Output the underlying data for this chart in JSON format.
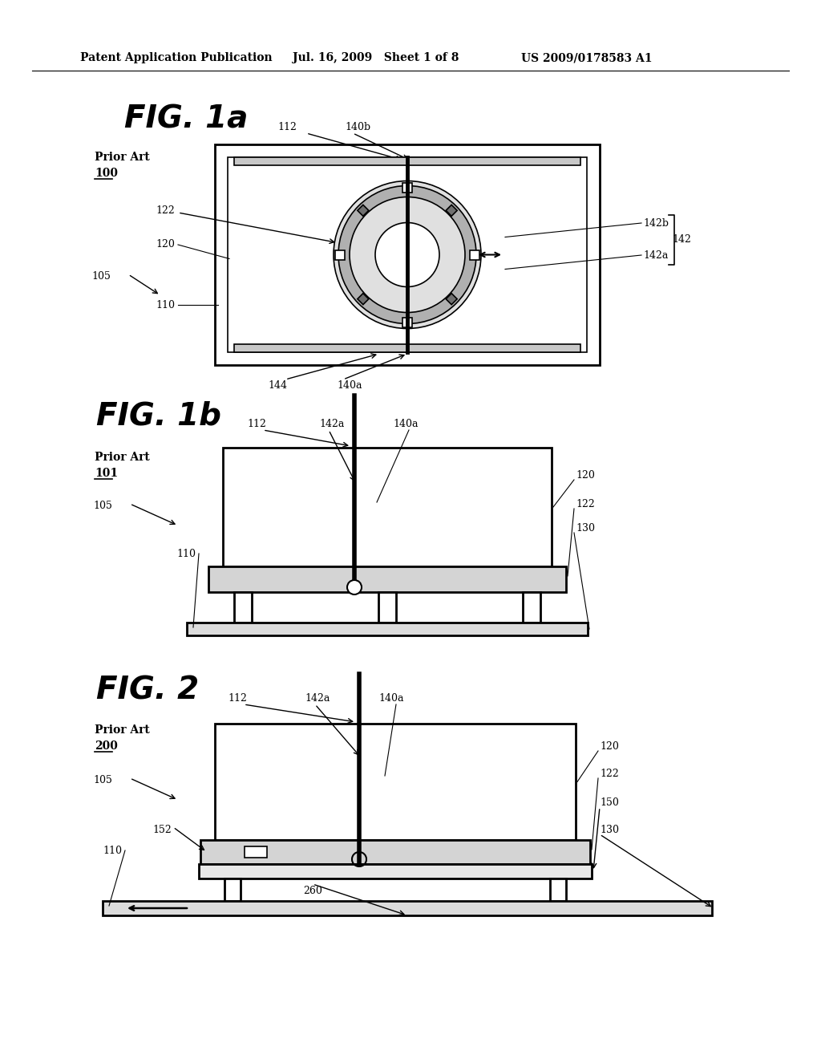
{
  "bg_color": "#ffffff",
  "header_text": "Patent Application Publication",
  "header_date": "Jul. 16, 2009   Sheet 1 of 8",
  "header_patent": "US 2009/0178583 A1",
  "fig1a_title": "FIG. 1a",
  "fig1b_title": "FIG. 1b",
  "fig2_title": "FIG. 2"
}
